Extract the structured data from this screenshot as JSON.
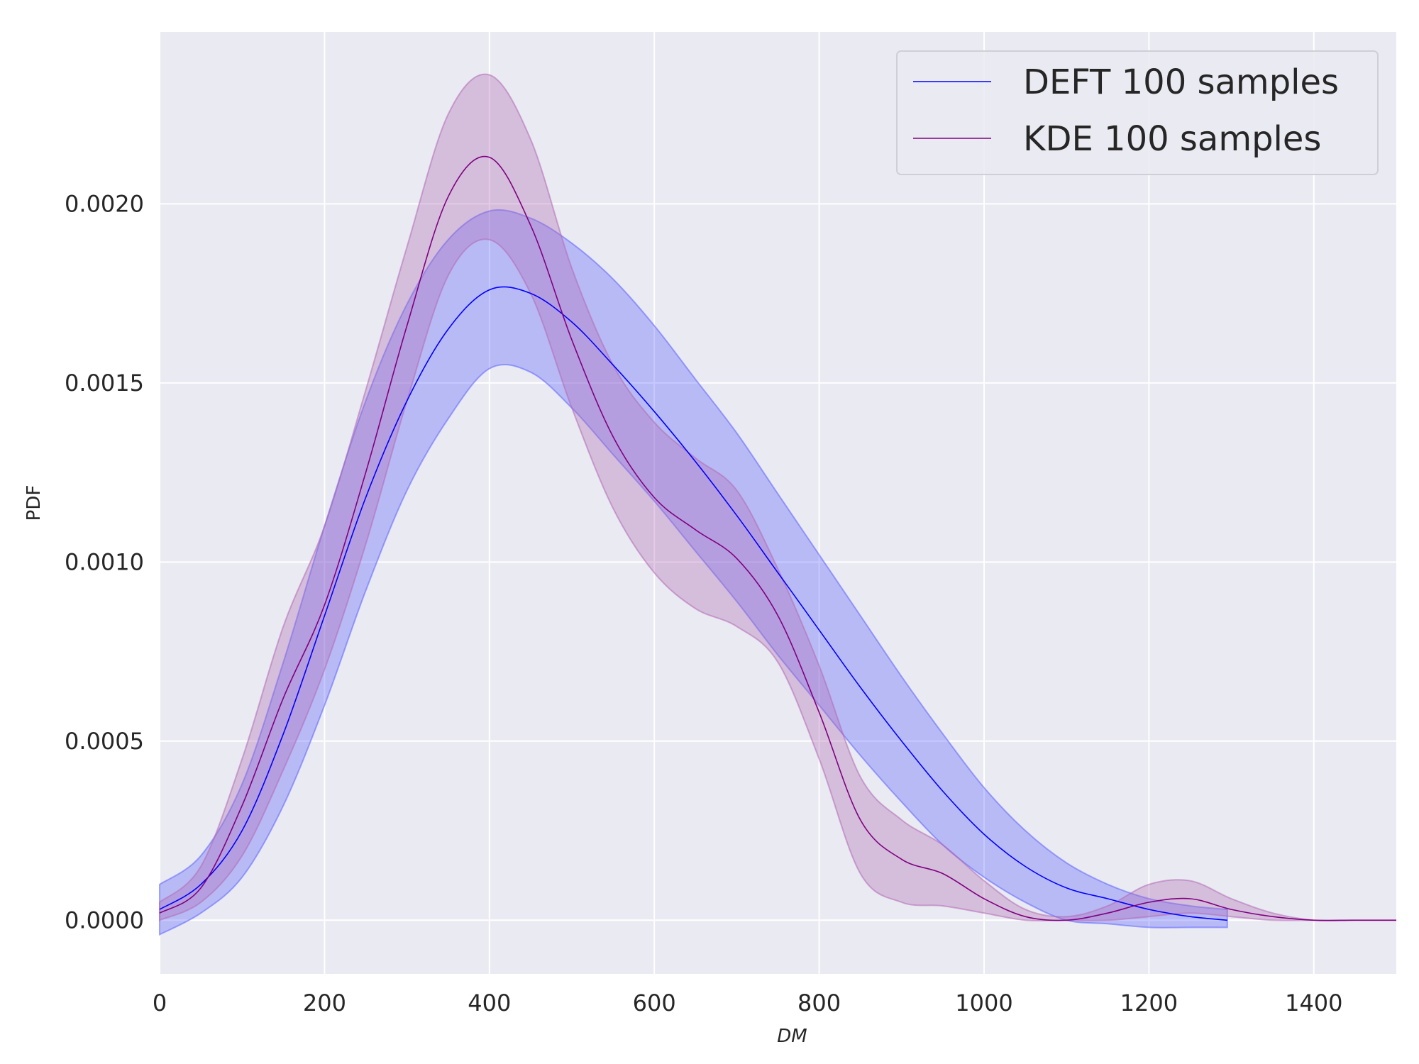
{
  "chart_data": {
    "type": "line",
    "xlabel": "DM",
    "ylabel": "PDF",
    "xlim": [
      0,
      1500
    ],
    "ylim": [
      -0.00015,
      0.00248
    ],
    "xticks": [
      0,
      200,
      400,
      600,
      800,
      1000,
      1200,
      1400
    ],
    "yticks": [
      0.0,
      0.0005,
      0.001,
      0.0015,
      0.002
    ],
    "xtick_labels": [
      "0",
      "200",
      "400",
      "600",
      "800",
      "1000",
      "1200",
      "1400"
    ],
    "ytick_labels": [
      "0.0000",
      "0.0005",
      "0.0010",
      "0.0015",
      "0.0020"
    ],
    "grid": true,
    "legend_position": "top-right",
    "colors": {
      "background": "#eaeaf2",
      "grid": "#ffffff",
      "deft": "#0000ff",
      "kde": "#800080",
      "deft_band": "#5b62ff",
      "kde_band": "#b06ab5"
    },
    "series": [
      {
        "name": "DEFT 100 samples",
        "color": "#0000ff",
        "x": [
          0,
          50,
          100,
          150,
          200,
          250,
          300,
          350,
          400,
          450,
          500,
          550,
          600,
          650,
          700,
          750,
          800,
          850,
          900,
          950,
          1000,
          1050,
          1100,
          1150,
          1200,
          1250,
          1295
        ],
        "y": [
          3e-05,
          0.0001,
          0.00025,
          0.00052,
          0.00085,
          0.00118,
          0.00145,
          0.00165,
          0.00176,
          0.00175,
          0.00167,
          0.00155,
          0.00142,
          0.00128,
          0.00113,
          0.00097,
          0.00081,
          0.00065,
          0.0005,
          0.00036,
          0.00024,
          0.00015,
          9e-05,
          6e-05,
          3e-05,
          1e-05,
          0.0
        ],
        "lower": [
          -4e-05,
          2e-05,
          0.00012,
          0.00032,
          0.0006,
          0.00092,
          0.0012,
          0.0014,
          0.00154,
          0.00153,
          0.00143,
          0.0013,
          0.00117,
          0.00103,
          0.00089,
          0.00074,
          0.0006,
          0.00046,
          0.00033,
          0.00021,
          0.00012,
          5e-05,
          0.0,
          -1e-05,
          -2e-05,
          -2e-05,
          -2e-05
        ],
        "upper": [
          0.0001,
          0.00018,
          0.00038,
          0.00072,
          0.0011,
          0.00145,
          0.00172,
          0.0019,
          0.00198,
          0.00196,
          0.00189,
          0.00179,
          0.00166,
          0.00151,
          0.00136,
          0.00119,
          0.00102,
          0.00085,
          0.00068,
          0.00052,
          0.00037,
          0.00025,
          0.00016,
          0.0001,
          6e-05,
          4e-05,
          3e-05
        ]
      },
      {
        "name": "KDE 100 samples",
        "color": "#800080",
        "x": [
          0,
          50,
          100,
          150,
          200,
          250,
          300,
          350,
          400,
          450,
          500,
          550,
          600,
          650,
          700,
          750,
          800,
          850,
          900,
          950,
          1000,
          1050,
          1100,
          1150,
          1200,
          1250,
          1300,
          1350,
          1400,
          1450,
          1500
        ],
        "y": [
          2e-05,
          9e-05,
          0.00032,
          0.00062,
          0.00088,
          0.00125,
          0.00166,
          0.00202,
          0.00213,
          0.00194,
          0.00162,
          0.00135,
          0.00118,
          0.00109,
          0.00101,
          0.00085,
          0.00058,
          0.00028,
          0.00017,
          0.00013,
          6e-05,
          1e-05,
          0.0,
          2e-05,
          5e-05,
          6e-05,
          3e-05,
          1e-05,
          0.0,
          0.0,
          0.0
        ],
        "lower": [
          0.0,
          5e-05,
          0.00018,
          0.00042,
          0.0007,
          0.00105,
          0.00145,
          0.0018,
          0.0019,
          0.00175,
          0.00143,
          0.00115,
          0.00097,
          0.00087,
          0.00082,
          0.00072,
          0.00045,
          0.00013,
          5e-05,
          4e-05,
          2e-05,
          0.0,
          0.0,
          0.0,
          1e-05,
          2e-05,
          1e-05,
          0.0,
          0.0,
          0.0,
          0.0
        ],
        "upper": [
          5e-05,
          0.00015,
          0.00045,
          0.00082,
          0.0011,
          0.00148,
          0.00188,
          0.00225,
          0.00236,
          0.00218,
          0.00182,
          0.00155,
          0.00139,
          0.00129,
          0.0012,
          0.00098,
          0.00071,
          0.0004,
          0.00028,
          0.00021,
          0.00011,
          3e-05,
          1e-05,
          4e-05,
          0.0001,
          0.00011,
          6e-05,
          2e-05,
          0.0,
          0.0,
          0.0
        ]
      }
    ]
  }
}
